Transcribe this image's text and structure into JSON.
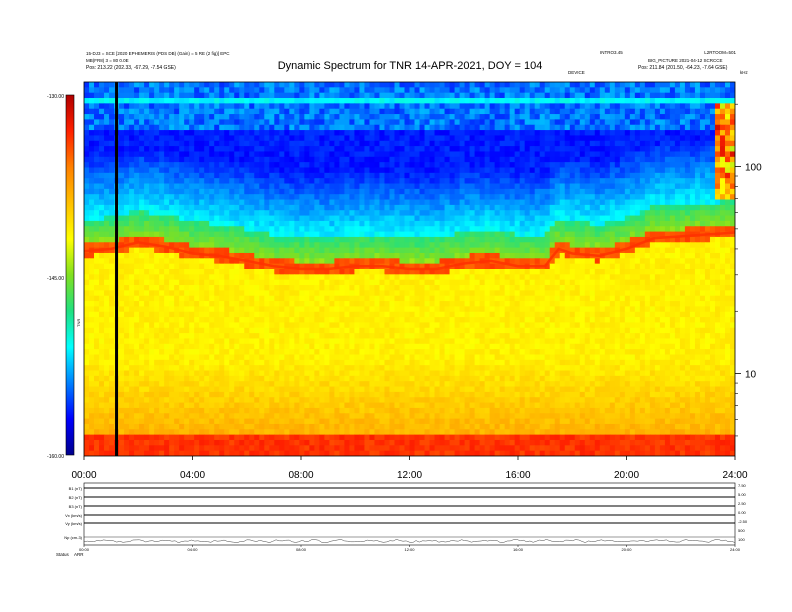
{
  "header": {
    "title": "Dynamic Spectrum for TNR 14-APR-2021, DOY = 104",
    "left_line1": "15-DJ3 = SCE [2020 EPHEMERIS (PDS DB) (Gain) = 5 RE (2 fig)] EPC",
    "left_line2": "MB(FR8) 3 = 80 0.0E",
    "left_pos": "Pos:    213.22 (202.33, -67.29, -7.54 GSE)",
    "right_line1": "INTRO3.45",
    "right_line2": "L2RTOOM=501",
    "right_line3": "BIG_PICTURE 2021-04-12 SCRCCE",
    "right_pos": "Pos:    211.84 (201.50, -64.23, -7.64 GSE)",
    "mid_label": "DEVICE",
    "khz_label": "kHz",
    "intensity_label": "TNR"
  },
  "chart_data": {
    "type": "heatmap",
    "title": "Dynamic Spectrum for TNR 14-APR-2021, DOY = 104",
    "x_tick_labels": [
      "00:00",
      "04:00",
      "08:00",
      "12:00",
      "16:00",
      "20:00",
      "24:00"
    ],
    "x_range_hours": [
      0,
      24
    ],
    "y_scale": "log",
    "y_unit": "kHz",
    "y_range_khz": [
      4,
      256
    ],
    "y_tick_labels": [
      "10",
      "100"
    ],
    "y_tick_values_khz": [
      10,
      100
    ],
    "colorbar": {
      "range": [
        -160.0,
        -130.0
      ],
      "tick_labels": [
        "-130.00",
        "-145.00",
        "-160.00"
      ],
      "tick_values": [
        -130,
        -145,
        -160
      ],
      "colors": [
        "#00008c",
        "#0000ff",
        "#0080ff",
        "#00ffff",
        "#20e080",
        "#80e020",
        "#ffff00",
        "#ffc000",
        "#ff8000",
        "#ff2000",
        "#b00000"
      ]
    },
    "marker_line_hours": 1.2,
    "plasma_line_khz": [
      {
        "t": 0,
        "f": 39
      },
      {
        "t": 1,
        "f": 40
      },
      {
        "t": 2,
        "f": 43
      },
      {
        "t": 3,
        "f": 41
      },
      {
        "t": 4,
        "f": 38
      },
      {
        "t": 5,
        "f": 37
      },
      {
        "t": 6,
        "f": 35
      },
      {
        "t": 7,
        "f": 33
      },
      {
        "t": 8,
        "f": 32
      },
      {
        "t": 9,
        "f": 32
      },
      {
        "t": 10,
        "f": 33
      },
      {
        "t": 11,
        "f": 33
      },
      {
        "t": 12,
        "f": 32
      },
      {
        "t": 13,
        "f": 32
      },
      {
        "t": 14,
        "f": 34
      },
      {
        "t": 15,
        "f": 35
      },
      {
        "t": 16,
        "f": 33
      },
      {
        "t": 17,
        "f": 33
      },
      {
        "t": 17.5,
        "f": 40
      },
      {
        "t": 18,
        "f": 38
      },
      {
        "t": 19,
        "f": 37
      },
      {
        "t": 20,
        "f": 40
      },
      {
        "t": 21,
        "f": 45
      },
      {
        "t": 22,
        "f": 46
      },
      {
        "t": 23,
        "f": 47
      },
      {
        "t": 24,
        "f": 48
      }
    ]
  },
  "bottom_panel": {
    "row_labels": [
      "B1 (nT)",
      "B2 (nT)",
      "B3 (nT)",
      "Vx (km/s)",
      "Vy (km/s)",
      "Np (cm-3)"
    ],
    "right_values": [
      "7.50",
      "5.00",
      "2.50",
      "0.00",
      "-2.50",
      "500",
      "100"
    ],
    "x_tick_labels": [
      "00:00",
      "04:00",
      "08:00",
      "12:00",
      "16:00",
      "20:00",
      "24:00"
    ],
    "footer_left": "Status",
    "footer_code": "ARR"
  }
}
